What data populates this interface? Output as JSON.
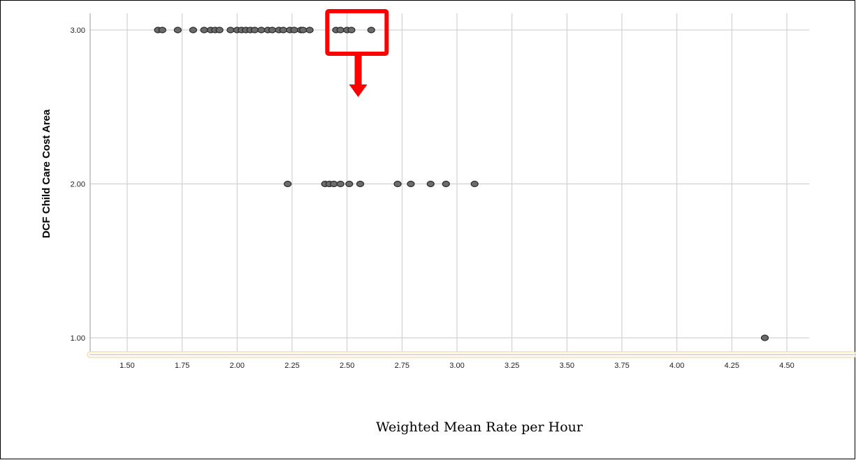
{
  "chart_data": {
    "type": "scatter",
    "title": "",
    "xlabel": "Weighted Mean Rate per Hour",
    "ylabel": "DCF Child Care Cost Area",
    "xlim": [
      1.35,
      4.55
    ],
    "ylim": [
      0.9,
      3.1
    ],
    "x_ticks": [
      1.5,
      1.75,
      2.0,
      2.25,
      2.5,
      2.75,
      3.0,
      3.25,
      3.5,
      3.75,
      4.0,
      4.25,
      4.5
    ],
    "x_tick_labels": [
      "1.50",
      "1.75",
      "2.00",
      "2.25",
      "2.50",
      "2.75",
      "3.00",
      "3.25",
      "3.50",
      "3.75",
      "4.00",
      "4.25",
      "4.50"
    ],
    "y_ticks": [
      1,
      2,
      3
    ],
    "y_tick_labels": [
      "1.00",
      "2.00",
      "3.00"
    ],
    "grid": true,
    "points": [
      {
        "x": 1.64,
        "y": 3
      },
      {
        "x": 1.66,
        "y": 3
      },
      {
        "x": 1.73,
        "y": 3
      },
      {
        "x": 1.8,
        "y": 3
      },
      {
        "x": 1.85,
        "y": 3
      },
      {
        "x": 1.88,
        "y": 3
      },
      {
        "x": 1.9,
        "y": 3
      },
      {
        "x": 1.92,
        "y": 3
      },
      {
        "x": 1.97,
        "y": 3
      },
      {
        "x": 2.0,
        "y": 3
      },
      {
        "x": 2.02,
        "y": 3
      },
      {
        "x": 2.04,
        "y": 3
      },
      {
        "x": 2.06,
        "y": 3
      },
      {
        "x": 2.08,
        "y": 3
      },
      {
        "x": 2.11,
        "y": 3
      },
      {
        "x": 2.14,
        "y": 3
      },
      {
        "x": 2.16,
        "y": 3
      },
      {
        "x": 2.19,
        "y": 3
      },
      {
        "x": 2.21,
        "y": 3
      },
      {
        "x": 2.24,
        "y": 3
      },
      {
        "x": 2.26,
        "y": 3
      },
      {
        "x": 2.29,
        "y": 3
      },
      {
        "x": 2.3,
        "y": 3
      },
      {
        "x": 2.33,
        "y": 3
      },
      {
        "x": 2.45,
        "y": 3
      },
      {
        "x": 2.47,
        "y": 3
      },
      {
        "x": 2.5,
        "y": 3
      },
      {
        "x": 2.52,
        "y": 3
      },
      {
        "x": 2.61,
        "y": 3
      },
      {
        "x": 2.23,
        "y": 2
      },
      {
        "x": 2.4,
        "y": 2
      },
      {
        "x": 2.42,
        "y": 2
      },
      {
        "x": 2.44,
        "y": 2
      },
      {
        "x": 2.47,
        "y": 2
      },
      {
        "x": 2.51,
        "y": 2
      },
      {
        "x": 2.56,
        "y": 2
      },
      {
        "x": 2.73,
        "y": 2
      },
      {
        "x": 2.79,
        "y": 2
      },
      {
        "x": 2.88,
        "y": 2
      },
      {
        "x": 2.95,
        "y": 2
      },
      {
        "x": 3.08,
        "y": 2
      },
      {
        "x": 4.4,
        "y": 1
      }
    ],
    "marker_color": "#6b6b6b",
    "marker_edge_color": "#2a2a2a",
    "annotations": [
      {
        "kind": "highlight-box",
        "color": "#ff0000",
        "x_range": [
          2.41,
          2.68
        ],
        "y_value": 3,
        "arrow": "down"
      }
    ],
    "axis_highlight_color": "#f5deb3"
  }
}
